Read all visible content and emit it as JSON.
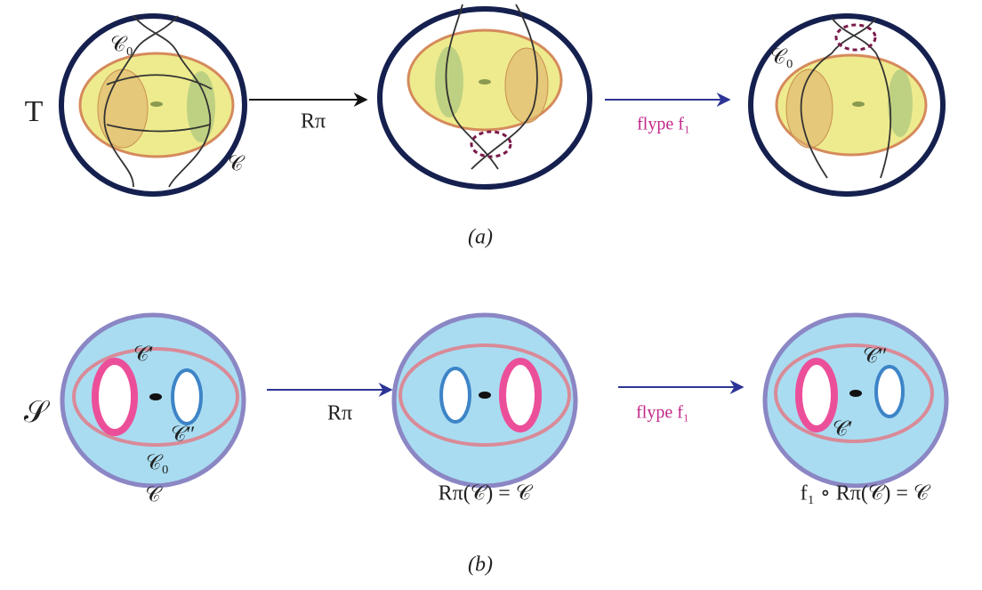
{
  "panel_a": {
    "row_label": "T",
    "caption": "(a)",
    "left": {
      "inner_label": "𝒞₀",
      "outer_label": "𝒞"
    },
    "right": {
      "inner_label": "𝒞₀"
    },
    "arrow_1": "Rπ",
    "arrow_2": "flype f₁"
  },
  "panel_b": {
    "row_label": "𝒮",
    "caption": "(b)",
    "left": {
      "label_pink": "𝒞′",
      "label_blue": "𝒞″",
      "inner_label": "𝒞₀",
      "outer_label": "𝒞"
    },
    "middle": {
      "equation": "Rπ(𝒞) = 𝒞"
    },
    "right": {
      "label_blue": "𝒞″",
      "label_pink": "𝒞′",
      "equation": "f₁ ∘ Rπ(𝒞) = 𝒞"
    },
    "arrow_1": "Rπ",
    "arrow_2": "flype f₁"
  }
}
